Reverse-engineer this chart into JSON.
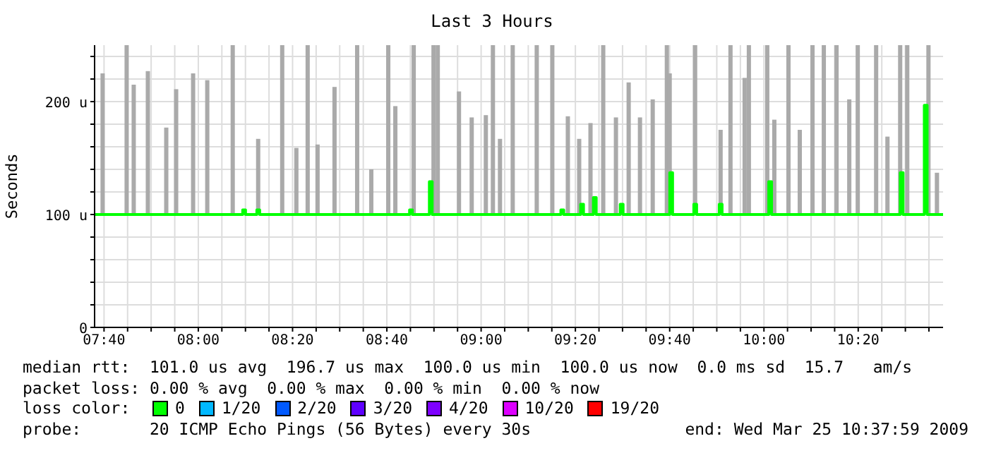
{
  "chart_data": {
    "type": "bar",
    "title": "Last 3 Hours",
    "ylabel": "Seconds",
    "legend_title": "loss color:",
    "legend": "bottom",
    "grid": true,
    "xlim": [
      7.6333,
      10.6333
    ],
    "xticks": [
      {
        "value": 7.6667,
        "label": "07:40"
      },
      {
        "value": 7.75,
        "label": null
      },
      {
        "value": 7.8333,
        "label": null
      },
      {
        "value": 7.9167,
        "label": null
      },
      {
        "value": 8,
        "label": "08:00"
      },
      {
        "value": 8.0833,
        "label": null
      },
      {
        "value": 8.1667,
        "label": null
      },
      {
        "value": 8.25,
        "label": null
      },
      {
        "value": 8.3333,
        "label": "08:20"
      },
      {
        "value": 8.4167,
        "label": null
      },
      {
        "value": 8.5,
        "label": null
      },
      {
        "value": 8.5833,
        "label": null
      },
      {
        "value": 8.6667,
        "label": "08:40"
      },
      {
        "value": 8.75,
        "label": null
      },
      {
        "value": 8.8333,
        "label": null
      },
      {
        "value": 8.9167,
        "label": null
      },
      {
        "value": 9,
        "label": "09:00"
      },
      {
        "value": 9.0833,
        "label": null
      },
      {
        "value": 9.1667,
        "label": null
      },
      {
        "value": 9.25,
        "label": null
      },
      {
        "value": 9.3333,
        "label": "09:20"
      },
      {
        "value": 9.4167,
        "label": null
      },
      {
        "value": 9.5,
        "label": null
      },
      {
        "value": 9.5833,
        "label": null
      },
      {
        "value": 9.6667,
        "label": "09:40"
      },
      {
        "value": 9.75,
        "label": null
      },
      {
        "value": 9.8333,
        "label": null
      },
      {
        "value": 9.9167,
        "label": null
      },
      {
        "value": 10,
        "label": "10:00"
      },
      {
        "value": 10.0833,
        "label": null
      },
      {
        "value": 10.1667,
        "label": null
      },
      {
        "value": 10.25,
        "label": null
      },
      {
        "value": 10.3333,
        "label": "10:20"
      },
      {
        "value": 10.4167,
        "label": null
      },
      {
        "value": 10.5,
        "label": null
      },
      {
        "value": 10.5833,
        "label": null
      }
    ],
    "ylim": [
      0,
      250
    ],
    "yticks": [
      0,
      {
        "value": 20,
        "label": null
      },
      {
        "value": 40,
        "label": null
      },
      {
        "value": 60,
        "label": null
      },
      {
        "value": 80,
        "label": null
      },
      {
        "value": 100,
        "label": "100 u"
      },
      {
        "value": 120,
        "label": null
      },
      {
        "value": 140,
        "label": null
      },
      {
        "value": 160,
        "label": null
      },
      {
        "value": 180,
        "label": null
      },
      {
        "value": 200,
        "label": "200 u"
      },
      {
        "value": 220,
        "label": null
      },
      {
        "value": 240,
        "label": null
      }
    ],
    "series": [
      {
        "color": "#aaaaaa",
        "base": [
          100,
          100,
          100,
          100,
          100,
          100,
          100,
          100,
          100,
          100,
          100,
          100,
          100,
          100,
          100,
          100,
          100,
          100,
          100,
          100,
          100,
          100,
          100,
          100,
          100,
          100,
          100,
          100,
          100,
          100,
          100,
          100,
          100,
          100,
          100,
          100,
          100,
          100,
          100,
          100,
          100,
          100,
          100,
          100,
          100,
          100,
          100,
          100,
          100,
          100,
          100,
          100,
          100,
          100,
          100,
          100,
          100,
          100,
          100,
          100
        ],
        "x": [
          7.6617,
          7.7467,
          7.7717,
          7.8217,
          7.8867,
          7.9217,
          7.9817,
          8.0317,
          8.1217,
          8.2117,
          8.2967,
          8.3467,
          8.3867,
          8.4217,
          8.4817,
          8.5617,
          8.6117,
          8.6717,
          8.6967,
          8.7617,
          8.8317,
          8.8467,
          8.9217,
          8.9667,
          9.0167,
          9.0417,
          9.0667,
          9.1117,
          9.1967,
          9.2517,
          9.3067,
          9.3467,
          9.3867,
          9.4317,
          9.4767,
          9.5217,
          9.5617,
          9.6067,
          9.6567,
          9.6667,
          9.7567,
          9.8467,
          9.8817,
          9.9317,
          9.9467,
          10.0117,
          10.0367,
          10.0867,
          10.1267,
          10.1717,
          10.2117,
          10.2567,
          10.3017,
          10.3317,
          10.3967,
          10.4367,
          10.4817,
          10.5067,
          10.5817,
          10.6117
        ],
        "values": [
          125,
          150,
          115,
          127,
          77,
          111,
          125,
          119,
          150,
          67,
          150,
          59,
          150,
          62,
          113,
          150,
          40,
          150,
          96,
          150,
          150,
          150,
          109,
          86,
          88,
          150,
          67,
          150,
          150,
          150,
          87,
          67,
          81,
          150,
          86,
          117,
          86,
          102,
          150,
          125,
          150,
          75,
          150,
          121,
          150,
          150,
          84,
          150,
          75,
          150,
          150,
          150,
          102,
          150,
          150,
          69,
          150,
          150,
          150,
          37
        ]
      },
      {
        "type": "step",
        "name": "0",
        "color": "#00ff00",
        "x": [
          7.6333,
          8.157,
          8.167,
          8.207,
          8.217,
          8.747,
          8.757,
          8.817,
          8.827,
          9.282,
          9.292,
          9.352,
          9.362,
          9.397,
          9.407,
          9.492,
          9.502,
          9.667,
          9.677,
          9.752,
          9.762,
          9.842,
          9.852,
          10.017,
          10.027,
          10.482,
          10.492,
          10.567,
          10.577,
          10.6333
        ],
        "values": [
          100,
          104,
          100,
          104,
          100,
          104,
          100,
          129,
          100,
          104,
          100,
          109,
          100,
          115,
          100,
          109,
          100,
          137,
          100,
          109,
          100,
          109,
          100,
          129,
          100,
          137,
          100,
          196.7,
          100,
          100
        ]
      },
      {
        "type": "step",
        "name": "1/20",
        "color": "#00b8ff"
      },
      {
        "type": "step",
        "name": "2/20",
        "color": "#0059ff"
      },
      {
        "type": "step",
        "name": "3/20",
        "color": "#5e00ff"
      },
      {
        "type": "step",
        "name": "4/20",
        "color": "#7e00ff"
      },
      {
        "type": "step",
        "name": "10/20",
        "color": "#dd00ff"
      },
      {
        "type": "step",
        "name": "19/20",
        "color": "#ff0000"
      }
    ],
    "annotations": [
      "median rtt:  101.0 us avg  196.7 us max  100.0 us min  100.0 us now  0.0 ms sd  15.7   am/s",
      "packet loss: 0.00 % avg  0.00 % max  0.00 % min  0.00 % now",
      "probe:       20 ICMP Echo Pings (56 Bytes) every 30s",
      "end: Wed Mar 25 10:37:59 2009"
    ]
  }
}
